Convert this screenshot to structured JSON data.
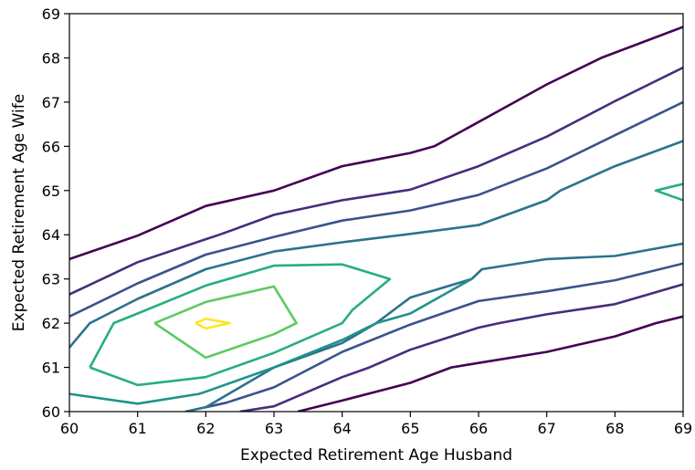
{
  "chart_data": {
    "type": "contour",
    "title": "",
    "xlabel": "Expected Retirement Age Husband",
    "ylabel": "Expected Retirement Age Wife",
    "xlim": [
      60,
      69
    ],
    "ylim": [
      60,
      69
    ],
    "xticks": [
      "60",
      "61",
      "62",
      "63",
      "64",
      "65",
      "66",
      "67",
      "68",
      "69"
    ],
    "yticks": [
      "60",
      "61",
      "62",
      "63",
      "64",
      "65",
      "66",
      "67",
      "68",
      "69"
    ],
    "grid": false,
    "legend": "none",
    "colormap": "viridis",
    "series": [
      {
        "level": 1,
        "color": "#440154",
        "segments": [
          [
            [
              60,
              63.45
            ],
            [
              61,
              63.98
            ],
            [
              62,
              64.65
            ],
            [
              63,
              65.0
            ],
            [
              64,
              65.55
            ],
            [
              65,
              65.85
            ],
            [
              65.35,
              66.0
            ],
            [
              66,
              66.55
            ],
            [
              67,
              67.4
            ],
            [
              67.8,
              68.0
            ],
            [
              69,
              68.7
            ]
          ],
          [
            [
              63.35,
              60.0
            ],
            [
              64,
              60.25
            ],
            [
              65,
              60.65
            ],
            [
              65.6,
              61.0
            ],
            [
              66,
              61.1
            ],
            [
              67,
              61.35
            ],
            [
              68,
              61.7
            ],
            [
              68.6,
              62.0
            ],
            [
              69,
              62.15
            ]
          ]
        ]
      },
      {
        "level": 2,
        "color": "#472d7b",
        "segments": [
          [
            [
              60,
              62.65
            ],
            [
              61,
              63.38
            ],
            [
              62,
              63.9
            ],
            [
              62.2,
              64.0
            ],
            [
              63,
              64.45
            ],
            [
              64,
              64.78
            ],
            [
              65,
              65.02
            ],
            [
              66,
              65.55
            ],
            [
              67,
              66.22
            ],
            [
              68,
              67.02
            ],
            [
              69,
              67.78
            ]
          ],
          [
            [
              62.5,
              60.0
            ],
            [
              63,
              60.12
            ],
            [
              64,
              60.78
            ],
            [
              64.4,
              61.0
            ],
            [
              65,
              61.4
            ],
            [
              66,
              61.9
            ],
            [
              66.3,
              62.0
            ],
            [
              67,
              62.2
            ],
            [
              68,
              62.43
            ],
            [
              69,
              62.88
            ]
          ]
        ]
      },
      {
        "level": 3,
        "color": "#3b528b",
        "segments": [
          [
            [
              60,
              62.15
            ],
            [
              61,
              62.9
            ],
            [
              62,
              63.55
            ],
            [
              63,
              63.95
            ],
            [
              64,
              64.32
            ],
            [
              65,
              64.55
            ],
            [
              66,
              64.9
            ],
            [
              67,
              65.5
            ],
            [
              68,
              66.25
            ],
            [
              69,
              67.0
            ]
          ],
          [
            [
              62,
              60.1
            ],
            [
              62.3,
              60.2
            ],
            [
              63,
              60.55
            ],
            [
              64,
              61.35
            ],
            [
              65,
              61.97
            ],
            [
              66,
              62.5
            ],
            [
              67,
              62.72
            ],
            [
              68,
              62.97
            ],
            [
              69,
              63.35
            ]
          ]
        ]
      },
      {
        "level": 4,
        "color": "#2c728e",
        "segments": [
          [
            [
              60,
              61.45
            ],
            [
              60.3,
              62.0
            ],
            [
              61,
              62.55
            ],
            [
              62,
              63.22
            ],
            [
              63,
              63.62
            ],
            [
              64,
              63.83
            ],
            [
              65,
              64.02
            ],
            [
              66,
              64.22
            ],
            [
              67,
              64.78
            ],
            [
              67.2,
              65.0
            ],
            [
              68,
              65.55
            ],
            [
              69,
              66.12
            ]
          ],
          [
            [
              61.7,
              60.0
            ],
            [
              62,
              60.1
            ],
            [
              63,
              61.0
            ],
            [
              64,
              61.55
            ],
            [
              64.5,
              62.0
            ],
            [
              65,
              62.58
            ],
            [
              65.9,
              63.0
            ],
            [
              66.05,
              63.22
            ],
            [
              67,
              63.45
            ],
            [
              68,
              63.52
            ],
            [
              69,
              63.8
            ]
          ]
        ]
      },
      {
        "level": 5,
        "color": "#21918c",
        "segments": [
          [
            [
              60,
              60.4
            ],
            [
              61,
              60.18
            ],
            [
              61.9,
              60.4
            ],
            [
              62,
              60.45
            ],
            [
              63,
              61.0
            ],
            [
              64,
              61.62
            ],
            [
              64.5,
              62.0
            ],
            [
              65,
              62.22
            ],
            [
              65.9,
              63.0
            ]
          ]
        ]
      },
      {
        "level": 6,
        "color": "#28ae80",
        "segments": [
          [
            [
              60.3,
              61.0
            ],
            [
              60.65,
              62.0
            ],
            [
              61,
              62.22
            ],
            [
              62,
              62.85
            ],
            [
              63,
              63.3
            ],
            [
              64,
              63.33
            ],
            [
              64.7,
              63.0
            ],
            [
              64.15,
              62.3
            ],
            [
              64,
              62.0
            ],
            [
              63,
              61.33
            ],
            [
              62,
              60.78
            ],
            [
              61,
              60.6
            ],
            [
              60.3,
              61.0
            ]
          ],
          [
            [
              69,
              64.78
            ],
            [
              68.6,
              65.0
            ],
            [
              69,
              65.15
            ]
          ]
        ]
      },
      {
        "level": 7,
        "color": "#5ec962",
        "segments": [
          [
            [
              61.25,
              62.0
            ],
            [
              62,
              62.48
            ],
            [
              63,
              62.83
            ],
            [
              63.33,
              62.0
            ],
            [
              63,
              61.75
            ],
            [
              62,
              61.22
            ],
            [
              61.25,
              62.0
            ]
          ]
        ]
      },
      {
        "level": 8,
        "color": "#fde725",
        "segments": [
          [
            [
              61.85,
              62.0
            ],
            [
              62,
              62.1
            ],
            [
              62.35,
              62.0
            ],
            [
              62,
              61.88
            ],
            [
              61.85,
              62.0
            ]
          ]
        ]
      }
    ]
  }
}
